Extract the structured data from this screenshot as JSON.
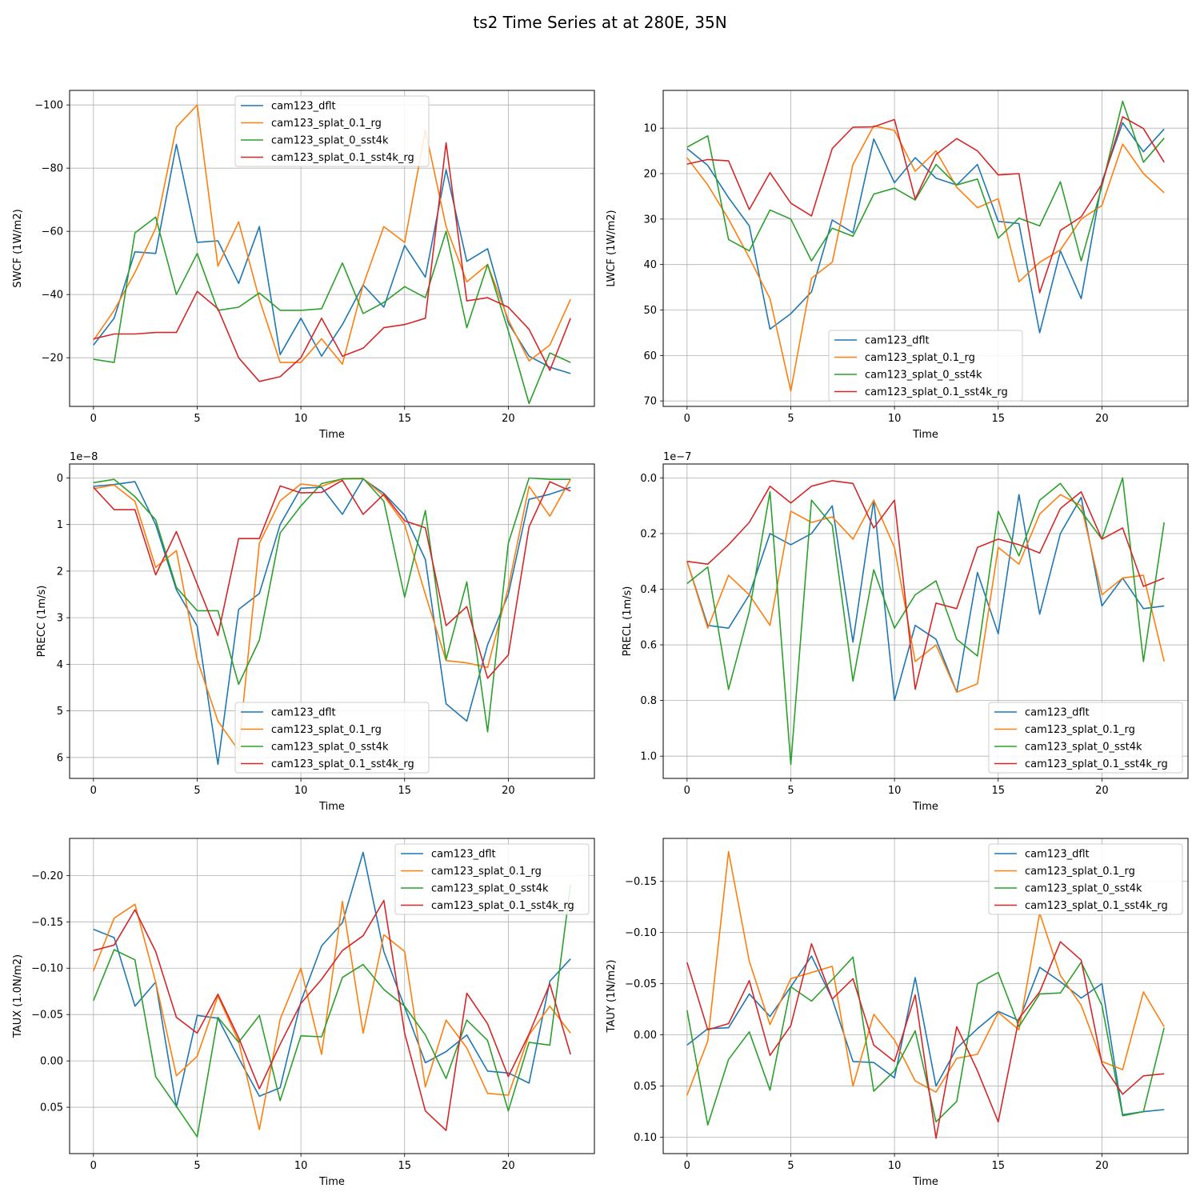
{
  "title": "ts2 Time Series at at 280E, 35N",
  "colors": {
    "s0": "#1f77b4",
    "s1": "#ff7f0e",
    "s2": "#2ca02c",
    "s3": "#d62728"
  },
  "chart_data": [
    {
      "type": "line",
      "ylabel": "SWCF (1W/m2)",
      "xlabel": "Time",
      "xlim": [
        -1.15,
        24.15
      ],
      "ylim": [
        -4.6,
        -104.6
      ],
      "yticks": [
        -100,
        -80,
        -60,
        -40,
        -20
      ],
      "yticklabels": [
        "−100",
        "−80",
        "−60",
        "−40",
        "−20"
      ],
      "xticks": [
        0,
        5,
        10,
        15,
        20
      ],
      "offset_label": "",
      "legend": "upper-center",
      "series": [
        {
          "name": "cam123_dflt",
          "values": [
            -24,
            -32.5,
            -53.5,
            -53,
            -87.5,
            -56.5,
            -57,
            -43.5,
            -61.5,
            -21,
            -32.5,
            -20.5,
            -30.5,
            -43,
            -36,
            -55.5,
            -45.5,
            -79.5,
            -50.5,
            -54.5,
            -31,
            -20.5,
            -17,
            -15
          ]
        },
        {
          "name": "cam123_splat_0.1_rg",
          "values": [
            -25.5,
            -35,
            -47,
            -61,
            -93,
            -100,
            -49,
            -63,
            -38.5,
            -18.5,
            -18.5,
            -26,
            -18,
            -43,
            -61.5,
            -56.5,
            -92,
            -61.5,
            -44,
            -49.5,
            -32,
            -19,
            -24,
            -38.5
          ]
        },
        {
          "name": "cam123_splat_0_sst4k",
          "values": [
            -19.5,
            -18.5,
            -59.5,
            -64.5,
            -40,
            -53,
            -35,
            -36,
            -40.5,
            -35,
            -35,
            -35.5,
            -50,
            -34,
            -37.5,
            -42.5,
            -39,
            -60,
            -29.5,
            -49.5,
            -28.5,
            -5.5,
            -21.5,
            -18.5
          ]
        },
        {
          "name": "cam123_splat_0.1_sst4k_rg",
          "values": [
            -26,
            -27.5,
            -27.5,
            -28,
            -28,
            -41,
            -35.5,
            -20,
            -12.5,
            -14,
            -20,
            -32.5,
            -20.5,
            -23,
            -29.5,
            -30.5,
            -32.5,
            -88,
            -38,
            -39,
            -36,
            -29,
            -16,
            -32.5
          ]
        }
      ]
    },
    {
      "type": "line",
      "ylabel": "LWCF (1W/m2)",
      "xlabel": "Time",
      "xlim": [
        -1.15,
        24.15
      ],
      "ylim": [
        71.2,
        1.7
      ],
      "yticks": [
        10,
        20,
        30,
        40,
        50,
        60,
        70
      ],
      "yticklabels": [
        "10",
        "20",
        "30",
        "40",
        "50",
        "60",
        "70"
      ],
      "xticks": [
        0,
        5,
        10,
        15,
        20
      ],
      "offset_label": "",
      "legend": "lower-center",
      "series": [
        {
          "name": "cam123_dflt",
          "values": [
            14.5,
            18.2,
            25.3,
            31.5,
            54.2,
            50.8,
            46,
            30.2,
            33,
            12.4,
            22,
            16.5,
            21,
            22.5,
            18,
            30.5,
            31,
            55,
            37,
            47.5,
            21.8,
            8.8,
            15.2,
            10.2
          ]
        },
        {
          "name": "cam123_splat_0.1_rg",
          "values": [
            16.5,
            22.5,
            30,
            38.5,
            47.5,
            67.8,
            43,
            39.5,
            18,
            9.5,
            10.5,
            19.5,
            15,
            23,
            27.5,
            25.5,
            43.8,
            39.5,
            36.8,
            30,
            27,
            13.5,
            20,
            24.2
          ]
        },
        {
          "name": "cam123_splat_0_sst4k",
          "values": [
            14.2,
            11.7,
            34.5,
            37,
            28,
            30,
            39.2,
            32,
            33.8,
            24.5,
            23.2,
            25.8,
            18,
            22.5,
            21.2,
            34.2,
            29.8,
            31.5,
            21.8,
            39.2,
            22.8,
            4.1,
            17.5,
            12.2
          ]
        },
        {
          "name": "cam123_splat_0.1_sst4k_rg",
          "values": [
            17.9,
            16.9,
            17.2,
            27.9,
            19.8,
            26.5,
            29.3,
            14.5,
            9.8,
            9.7,
            8.1,
            25.6,
            15.8,
            12.3,
            15,
            20.3,
            20,
            46.2,
            32.5,
            29.5,
            22.3,
            7.5,
            10.1,
            17.5
          ]
        }
      ]
    },
    {
      "type": "line",
      "ylabel": "PRECC (1m/s)",
      "xlabel": "Time",
      "xlim": [
        -1.15,
        24.15
      ],
      "ylim": [
        6.45,
        -0.3
      ],
      "yticks": [
        0,
        1,
        2,
        3,
        4,
        5,
        6
      ],
      "yticklabels": [
        "0",
        "1",
        "2",
        "3",
        "4",
        "5",
        "6"
      ],
      "xticks": [
        0,
        5,
        10,
        15,
        20
      ],
      "offset_label": "1e−8",
      "legend": "lower-center",
      "series": [
        {
          "name": "cam123_dflt",
          "values": [
            0.18,
            0.14,
            0.08,
            1,
            2.4,
            3.18,
            6.15,
            2.82,
            2.48,
            1,
            0.22,
            0.2,
            0.78,
            0.02,
            0.33,
            0.8,
            1.75,
            4.85,
            5.22,
            3.58,
            2.5,
            0.46,
            0.35,
            0.2
          ]
        },
        {
          "name": "cam123_splat_0.1_rg",
          "values": [
            0.23,
            0.15,
            0.5,
            1.92,
            1.56,
            3.9,
            5.22,
            5.85,
            1.4,
            0.49,
            0.13,
            0.18,
            0.02,
            0.02,
            0.38,
            1,
            2.5,
            3.92,
            3.97,
            4.07,
            2.35,
            0.18,
            0.82,
            0.03
          ]
        },
        {
          "name": "cam123_splat_0_sst4k",
          "values": [
            0.1,
            0.03,
            0.4,
            0.9,
            2.35,
            2.85,
            2.85,
            4.43,
            3.48,
            1.18,
            0.6,
            0.12,
            0.02,
            0.01,
            0.5,
            2.56,
            0.7,
            3.9,
            2.23,
            5.45,
            1.4,
            0,
            0.03,
            0.03
          ]
        },
        {
          "name": "cam123_splat_0.1_sst4k_rg",
          "values": [
            0.2,
            0.68,
            0.68,
            2.08,
            1.15,
            2.28,
            3.38,
            1.3,
            1.3,
            0.17,
            0.32,
            0.31,
            0.05,
            0.78,
            0.35,
            0.92,
            1.07,
            3.17,
            2.76,
            4.3,
            3.8,
            1.05,
            0.08,
            0.28
          ]
        }
      ]
    },
    {
      "type": "line",
      "ylabel": "PRECL (1m/s)",
      "xlabel": "Time",
      "xlim": [
        -1.15,
        24.15
      ],
      "ylim": [
        1.08,
        -0.05
      ],
      "yticks": [
        0,
        0.2,
        0.4,
        0.6,
        0.8,
        1.0
      ],
      "yticklabels": [
        "0.0",
        "0.2",
        "0.4",
        "0.6",
        "0.8",
        "1.0"
      ],
      "xticks": [
        0,
        5,
        10,
        15,
        20
      ],
      "offset_label": "1e−7",
      "legend": "lower-right",
      "series": [
        {
          "name": "cam123_dflt",
          "values": [
            0.3,
            0.53,
            0.54,
            0.42,
            0.2,
            0.24,
            0.2,
            0.1,
            0.59,
            0.08,
            0.8,
            0.53,
            0.58,
            0.77,
            0.34,
            0.56,
            0.06,
            0.49,
            0.2,
            0.07,
            0.46,
            0.36,
            0.47,
            0.46
          ]
        },
        {
          "name": "cam123_splat_0.1_rg",
          "values": [
            0.3,
            0.54,
            0.35,
            0.42,
            0.53,
            0.12,
            0.16,
            0.14,
            0.22,
            0.08,
            0.25,
            0.66,
            0.6,
            0.77,
            0.74,
            0.25,
            0.31,
            0.13,
            0.06,
            0.1,
            0.42,
            0.36,
            0.35,
            0.66
          ]
        },
        {
          "name": "cam123_splat_0_sst4k",
          "values": [
            0.38,
            0.32,
            0.76,
            0.48,
            0.05,
            1.03,
            0.08,
            0.17,
            0.73,
            0.33,
            0.54,
            0.42,
            0.37,
            0.58,
            0.64,
            0.12,
            0.28,
            0.08,
            0.02,
            0.12,
            0.22,
            0,
            0.66,
            0.16
          ]
        },
        {
          "name": "cam123_splat_0.1_sst4k_rg",
          "values": [
            0.3,
            0.31,
            0.24,
            0.16,
            0.03,
            0.09,
            0.03,
            0.01,
            0.02,
            0.18,
            0.08,
            0.76,
            0.45,
            0.47,
            0.25,
            0.22,
            0.24,
            0.27,
            0.11,
            0.05,
            0.22,
            0.18,
            0.39,
            0.36
          ]
        }
      ]
    },
    {
      "type": "line",
      "ylabel": "TAUX (1.0N/m2)",
      "xlabel": "Time",
      "xlim": [
        -1.15,
        24.15
      ],
      "ylim": [
        0.1,
        -0.24
      ],
      "yticks": [
        -0.2,
        -0.15,
        -0.1,
        -0.05,
        0,
        0.05
      ],
      "yticklabels": [
        "−0.20",
        "−0.15",
        "−0.10",
        "−0.05",
        "0.00",
        "0.05"
      ],
      "xticks": [
        0,
        5,
        10,
        15,
        20
      ],
      "offset_label": "",
      "legend": "upper-right",
      "series": [
        {
          "name": "cam123_dflt",
          "values": [
            -0.142,
            -0.133,
            -0.059,
            -0.085,
            0.05,
            -0.049,
            -0.046,
            -0.003,
            0.038,
            0.029,
            -0.064,
            -0.124,
            -0.149,
            -0.225,
            -0.118,
            -0.058,
            0.002,
            -0.01,
            -0.028,
            0.011,
            0.013,
            0.024,
            -0.086,
            -0.11
          ]
        },
        {
          "name": "cam123_splat_0.1_rg",
          "values": [
            -0.097,
            -0.154,
            -0.169,
            -0.085,
            0.016,
            -0.005,
            -0.07,
            -0.021,
            0.074,
            -0.045,
            -0.1,
            -0.007,
            -0.172,
            -0.03,
            -0.136,
            -0.118,
            0.028,
            -0.044,
            -0.014,
            0.035,
            0.037,
            -0.028,
            -0.059,
            -0.03
          ]
        },
        {
          "name": "cam123_splat_0_sst4k",
          "values": [
            -0.065,
            -0.12,
            -0.109,
            0.017,
            0.049,
            0.082,
            -0.047,
            -0.02,
            -0.049,
            0.043,
            -0.027,
            -0.026,
            -0.09,
            -0.104,
            -0.077,
            -0.059,
            -0.028,
            0.019,
            -0.044,
            -0.022,
            0.054,
            -0.02,
            -0.017,
            -0.19
          ]
        },
        {
          "name": "cam123_splat_0.1_sst4k_rg",
          "values": [
            -0.119,
            -0.125,
            -0.163,
            -0.118,
            -0.047,
            -0.03,
            -0.072,
            -0.025,
            0.03,
            -0.018,
            -0.062,
            -0.088,
            -0.119,
            -0.135,
            -0.173,
            -0.03,
            0.054,
            0.075,
            -0.073,
            -0.04,
            0.017,
            -0.029,
            -0.083,
            -0.007
          ]
        }
      ]
    },
    {
      "type": "line",
      "ylabel": "TAUY (1N/m2)",
      "xlabel": "Time",
      "xlim": [
        -1.15,
        24.15
      ],
      "ylim": [
        0.116,
        -0.192
      ],
      "yticks": [
        -0.15,
        -0.1,
        -0.05,
        0,
        0.05,
        0.1
      ],
      "yticklabels": [
        "−0.15",
        "−0.10",
        "−0.05",
        "0.00",
        "0.05",
        "0.10"
      ],
      "xticks": [
        0,
        5,
        10,
        15,
        20
      ],
      "offset_label": "",
      "legend": "upper-right",
      "series": [
        {
          "name": "cam123_dflt",
          "values": [
            0.01,
            -0.006,
            -0.007,
            -0.04,
            -0.018,
            -0.047,
            -0.077,
            -0.035,
            0.026,
            0.027,
            0.042,
            -0.056,
            0.05,
            0.013,
            -0.006,
            -0.023,
            -0.014,
            -0.066,
            -0.052,
            -0.036,
            -0.05,
            0.078,
            0.075,
            0.073
          ]
        },
        {
          "name": "cam123_splat_0.1_rg",
          "values": [
            0.059,
            0.006,
            -0.179,
            -0.072,
            -0.01,
            -0.055,
            -0.061,
            -0.067,
            0.05,
            -0.02,
            0.005,
            0.045,
            0.056,
            0.023,
            0.019,
            -0.022,
            -0.005,
            -0.119,
            -0.058,
            -0.029,
            0.026,
            0.034,
            -0.042,
            -0.008
          ]
        },
        {
          "name": "cam123_splat_0_sst4k",
          "values": [
            -0.024,
            0.088,
            0.024,
            -0.003,
            0.054,
            -0.047,
            -0.033,
            -0.054,
            -0.076,
            0.055,
            0.035,
            -0.004,
            0.085,
            0.065,
            -0.05,
            -0.061,
            -0.008,
            -0.04,
            -0.041,
            -0.071,
            -0.029,
            0.079,
            0.075,
            -0.007
          ]
        },
        {
          "name": "cam123_splat_0.1_sst4k_rg",
          "values": [
            -0.071,
            -0.005,
            -0.011,
            -0.053,
            0.02,
            -0.009,
            -0.089,
            -0.035,
            -0.055,
            0.01,
            0.026,
            -0.039,
            0.101,
            -0.008,
            0.035,
            0.085,
            -0.016,
            -0.042,
            -0.091,
            -0.073,
            0.028,
            0.058,
            0.04,
            0.038
          ]
        }
      ]
    }
  ]
}
